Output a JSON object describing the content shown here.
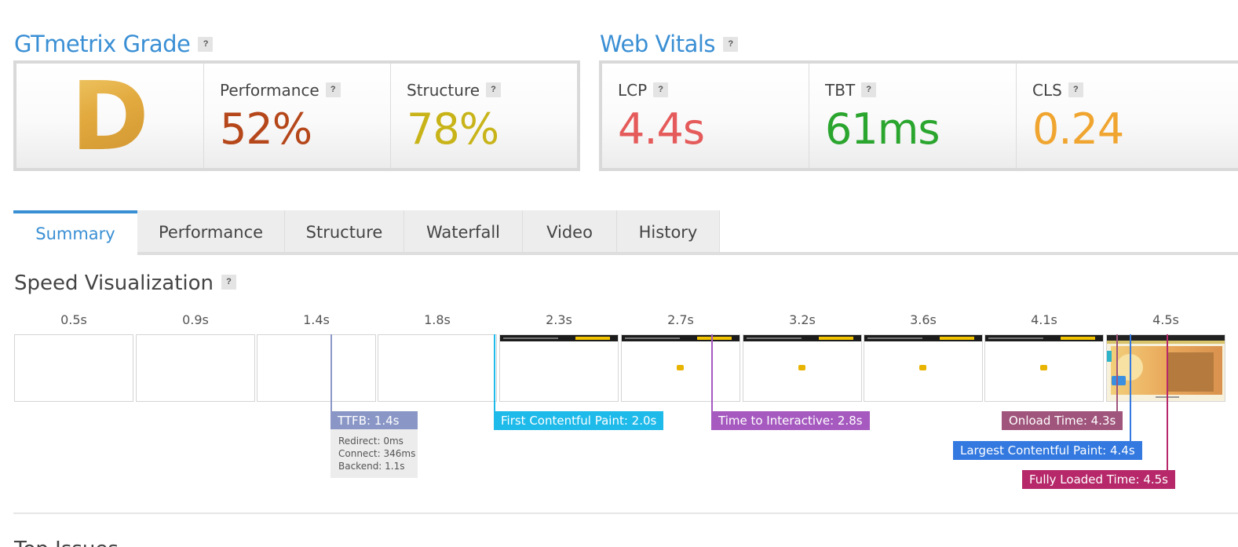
{
  "gtmetrix_grade": {
    "title": "GTmetrix Grade",
    "help": "?",
    "grade": "D",
    "performance": {
      "label": "Performance",
      "value": "52%",
      "color": "#b5471a"
    },
    "structure": {
      "label": "Structure",
      "value": "78%",
      "color": "#c8b419"
    }
  },
  "web_vitals": {
    "title": "Web Vitals",
    "help": "?",
    "lcp": {
      "label": "LCP",
      "value": "4.4s",
      "color": "#e55a5a"
    },
    "tbt": {
      "label": "TBT",
      "value": "61ms",
      "color": "#2aa52e"
    },
    "cls": {
      "label": "CLS",
      "value": "0.24",
      "color": "#f0a530"
    }
  },
  "tabs": [
    {
      "label": "Summary",
      "active": true
    },
    {
      "label": "Performance",
      "active": false
    },
    {
      "label": "Structure",
      "active": false
    },
    {
      "label": "Waterfall",
      "active": false
    },
    {
      "label": "Video",
      "active": false
    },
    {
      "label": "History",
      "active": false
    }
  ],
  "speed_visualization": {
    "title": "Speed Visualization",
    "help": "?",
    "frames": [
      "0.5s",
      "0.9s",
      "1.4s",
      "1.8s",
      "2.3s",
      "2.7s",
      "3.2s",
      "3.6s",
      "4.1s",
      "4.5s"
    ],
    "markers": {
      "ttfb": {
        "label": "TTFB: 1.4s",
        "color": "#8a97c6"
      },
      "ttfb_details": [
        "Redirect: 0ms",
        "Connect: 346ms",
        "Backend: 1.1s"
      ],
      "fcp": {
        "label": "First Contentful Paint: 2.0s",
        "color": "#1ebaea"
      },
      "tti": {
        "label": "Time to Interactive: 2.8s",
        "color": "#a65ac0"
      },
      "onload": {
        "label": "Onload Time: 4.3s",
        "color": "#a0557c"
      },
      "lcp": {
        "label": "Largest Contentful Paint: 4.4s",
        "color": "#3379e0"
      },
      "fully_loaded": {
        "label": "Fully Loaded Time: 4.5s",
        "color": "#b6286a"
      }
    }
  },
  "next_section_title": "Top Issues"
}
